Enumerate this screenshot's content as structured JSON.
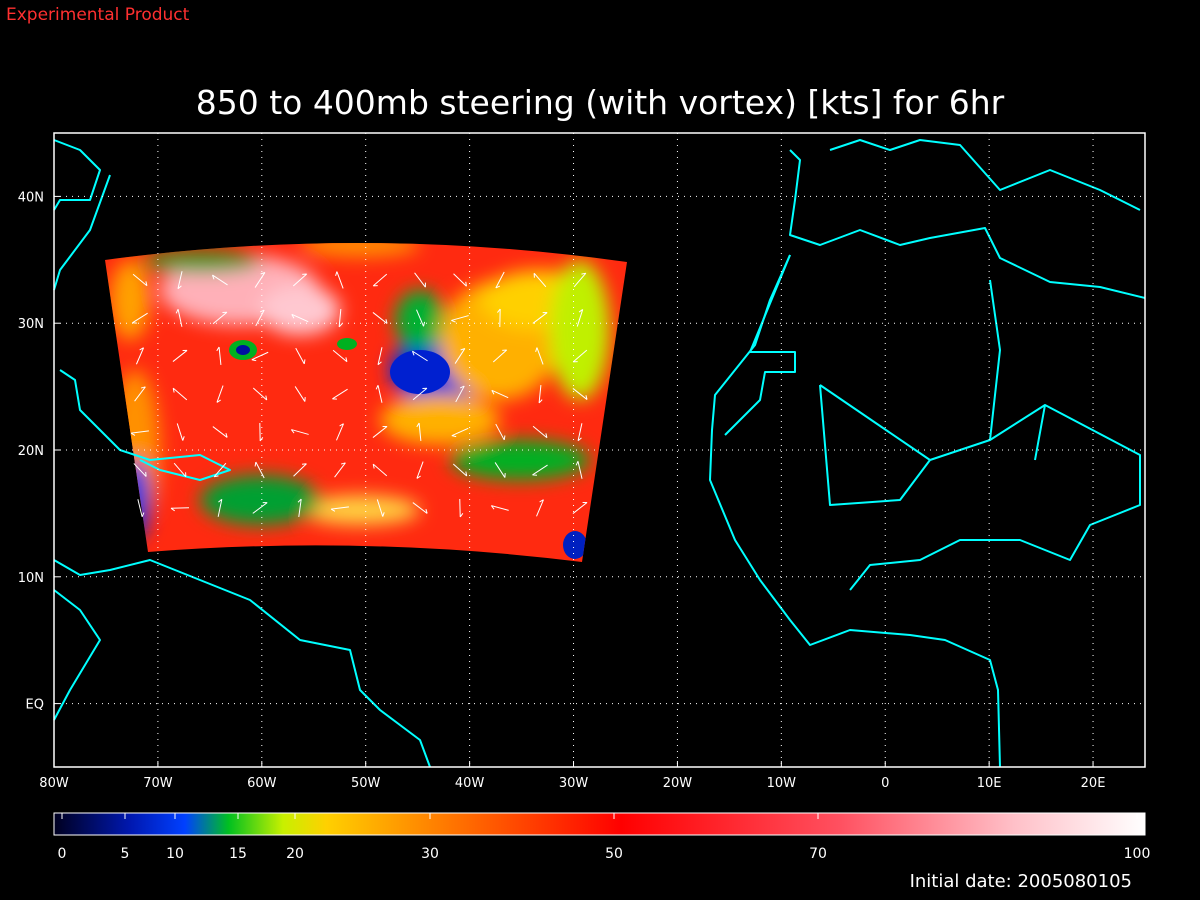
{
  "header": {
    "label": "Experimental Product",
    "title": "850 to 400mb steering (with vortex) [kts] for 6hr"
  },
  "map": {
    "xlim": [
      -80,
      25
    ],
    "ylim": [
      -5,
      45
    ],
    "xticks": [
      {
        "value": -80,
        "label": "80W"
      },
      {
        "value": -70,
        "label": "70W"
      },
      {
        "value": -60,
        "label": "60W"
      },
      {
        "value": -50,
        "label": "50W"
      },
      {
        "value": -40,
        "label": "40W"
      },
      {
        "value": -30,
        "label": "30W"
      },
      {
        "value": -20,
        "label": "20W"
      },
      {
        "value": -10,
        "label": "10W"
      },
      0,
      {
        "value": 10,
        "label": "10E"
      },
      {
        "value": 20,
        "label": "20E"
      }
    ],
    "yticks": [
      {
        "value": 0,
        "label": "EQ"
      },
      {
        "value": 10,
        "label": "10N"
      },
      {
        "value": 20,
        "label": "20N"
      },
      {
        "value": 30,
        "label": "30N"
      },
      {
        "value": 40,
        "label": "40N"
      }
    ]
  },
  "colorbar": {
    "ticks": [
      0,
      5,
      10,
      15,
      20,
      30,
      50,
      70,
      100
    ]
  },
  "footer": {
    "initial_date": "Initial date: 2005080105"
  }
}
